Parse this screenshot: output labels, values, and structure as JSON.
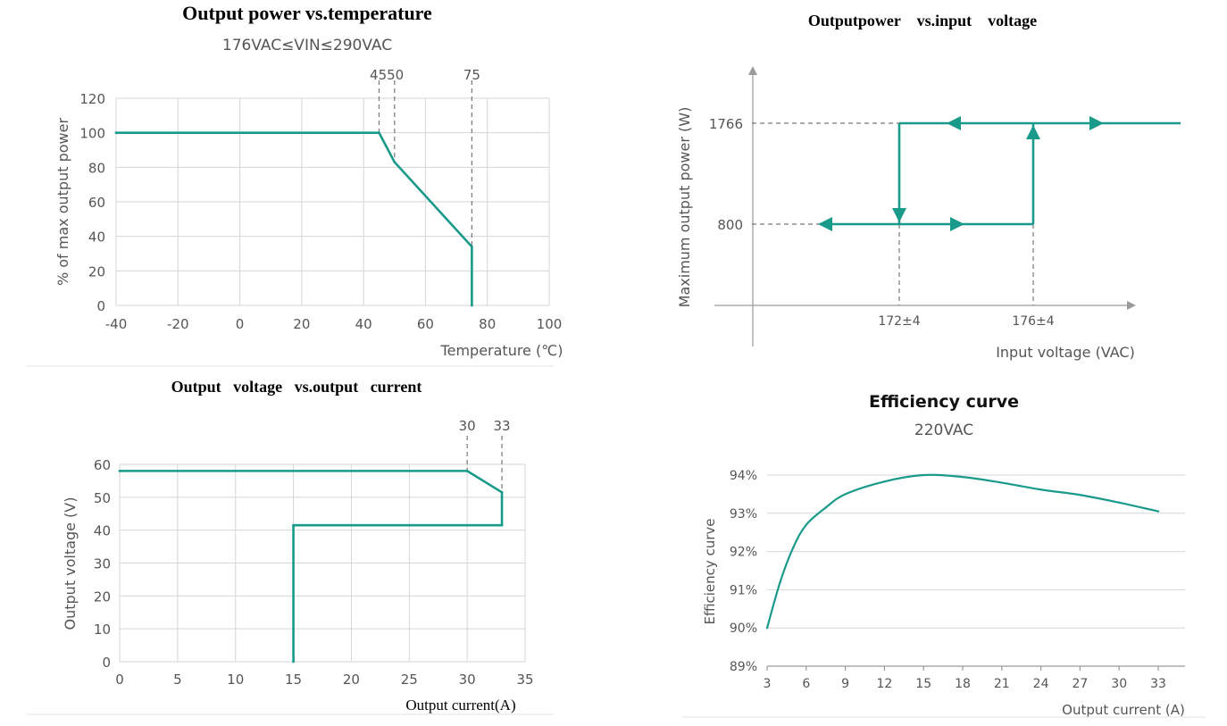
{
  "chart_data": [
    {
      "type": "line",
      "title": "Output power vs.temperature",
      "subtitle": "176VAC≤VIN≤290VAC",
      "xlabel": "Temperature (℃)",
      "ylabel": "% of max output power",
      "xlim": [
        -40,
        100
      ],
      "ylim": [
        0,
        120
      ],
      "x_ticks": [
        "-40",
        "-20",
        "0",
        "20",
        "40",
        "60",
        "80",
        "100"
      ],
      "y_ticks": [
        "0",
        "20",
        "40",
        "60",
        "80",
        "100",
        "120"
      ],
      "annotations": [
        "4550",
        "75"
      ],
      "grid": true,
      "series": [
        {
          "x": [
            -40,
            45,
            50,
            75,
            75
          ],
          "y": [
            100,
            100,
            83,
            34,
            0
          ]
        }
      ]
    },
    {
      "type": "line",
      "title": "Outputpower    vs.input    voltage",
      "xlabel": "Input voltage (VAC)",
      "ylabel": "Maximum output power (W)",
      "x_ticks": [
        "172±4",
        "176±4"
      ],
      "y_ticks": [
        "800",
        "1766"
      ],
      "grid": false,
      "series": [
        {
          "x": [
            "172±4",
            "172±4",
            "176±4",
            "176±4"
          ],
          "y": [
            1766,
            800,
            800,
            1766
          ]
        }
      ]
    },
    {
      "type": "line",
      "title": "Output   voltage   vs.output   current",
      "xlabel": "Output current(A)",
      "ylabel": "Output voltage (V)",
      "xlim": [
        0,
        35
      ],
      "ylim": [
        0,
        60
      ],
      "x_ticks": [
        "0",
        "5",
        "10",
        "15",
        "20",
        "25",
        "30",
        "35"
      ],
      "y_ticks": [
        "0",
        "10",
        "20",
        "30",
        "40",
        "50",
        "60"
      ],
      "annotations": [
        "30",
        "33"
      ],
      "grid": true,
      "series": [
        {
          "x": [
            0,
            30,
            33,
            33,
            15,
            15
          ],
          "y": [
            58,
            58,
            51.5,
            41.5,
            41.5,
            0
          ]
        }
      ]
    },
    {
      "type": "line",
      "title": "Efficiency curve",
      "subtitle": "220VAC",
      "xlabel": "Output current (A)",
      "ylabel": "Efficiency curve",
      "xlim": [
        3,
        33
      ],
      "ylim": [
        89,
        94
      ],
      "x_ticks": [
        "3",
        "6",
        "9",
        "12",
        "15",
        "18",
        "21",
        "24",
        "27",
        "30",
        "33"
      ],
      "y_ticks": [
        "89%",
        "90%",
        "91%",
        "92%",
        "93%",
        "94%"
      ],
      "grid": true,
      "series": [
        {
          "x": [
            3,
            4,
            5,
            6,
            7.5,
            9,
            12,
            15,
            18,
            21,
            24,
            27,
            30,
            33
          ],
          "y": [
            90.0,
            91.2,
            92.1,
            92.7,
            93.15,
            93.5,
            93.83,
            94.0,
            93.95,
            93.8,
            93.62,
            93.48,
            93.28,
            93.05
          ]
        }
      ]
    }
  ]
}
